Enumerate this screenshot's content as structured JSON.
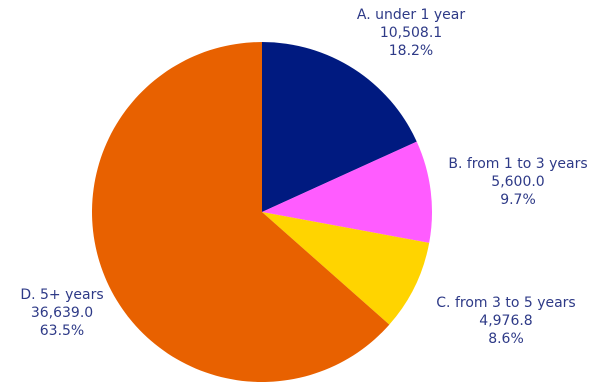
{
  "chart_data": {
    "type": "pie",
    "title": "",
    "slices": [
      {
        "label": "A. under 1 year",
        "value": 10508.1,
        "value_text": "10,508.1",
        "percent_text": "18.2%",
        "color": "#001A80"
      },
      {
        "label": "B. from 1 to 3 years",
        "value": 5600.0,
        "value_text": "5,600.0",
        "percent_text": "9.7%",
        "color": "#FF5CFF"
      },
      {
        "label": "C. from 3 to 5 years",
        "value": 4976.8,
        "value_text": "4,976.8",
        "percent_text": "8.6%",
        "color": "#FFD400"
      },
      {
        "label": "D. 5+ years",
        "value": 36639.0,
        "value_text": "36,639.0",
        "percent_text": "63.5%",
        "color": "#E86100"
      }
    ],
    "start": "12 o'clock",
    "direction": "clockwise",
    "label_color": "#2E3A87"
  }
}
